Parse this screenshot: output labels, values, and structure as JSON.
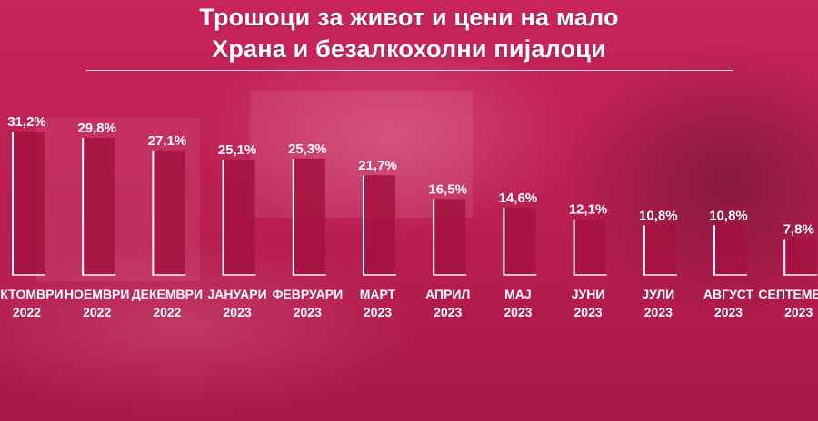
{
  "title_line1": "Трошоци за живот и цени на мало",
  "title_line2": "Храна и безалкохолни пијалоци",
  "colors": {
    "background": "#c21f55",
    "bar": "#a3123f",
    "baseline": "#ffffff",
    "text": "#ffffff"
  },
  "chart_data": {
    "type": "bar",
    "title": "Трошоци за живот и цени на мало / Храна и безалкохолни пијалоци",
    "categories": [
      [
        "ОКТОМВРИ",
        "2022"
      ],
      [
        "НОЕМВРИ",
        "2022"
      ],
      [
        "ДЕКЕМВРИ",
        "2022"
      ],
      [
        "ЈАНУАРИ",
        "2023"
      ],
      [
        "ФЕВРУАРИ",
        "2023"
      ],
      [
        "МАРТ",
        "2023"
      ],
      [
        "АПРИЛ",
        "2023"
      ],
      [
        "МАЈ",
        "2023"
      ],
      [
        "ЈУНИ",
        "2023"
      ],
      [
        "ЈУЛИ",
        "2023"
      ],
      [
        "АВГУСТ",
        "2023"
      ],
      [
        "СЕПТЕМВРИ",
        "2023"
      ]
    ],
    "values": [
      31.2,
      29.8,
      27.1,
      25.1,
      25.3,
      21.7,
      16.5,
      14.6,
      12.1,
      10.8,
      10.8,
      7.8
    ],
    "labels": [
      "31,2%",
      "29,8%",
      "27,1%",
      "25,1%",
      "25,3%",
      "21,7%",
      "16,5%",
      "14,6%",
      "12,1%",
      "10,8%",
      "10,8%",
      "7,8%"
    ],
    "xlabel": "",
    "ylabel": "",
    "ylim": [
      0,
      31.2
    ],
    "grid": false,
    "legend": "none"
  }
}
